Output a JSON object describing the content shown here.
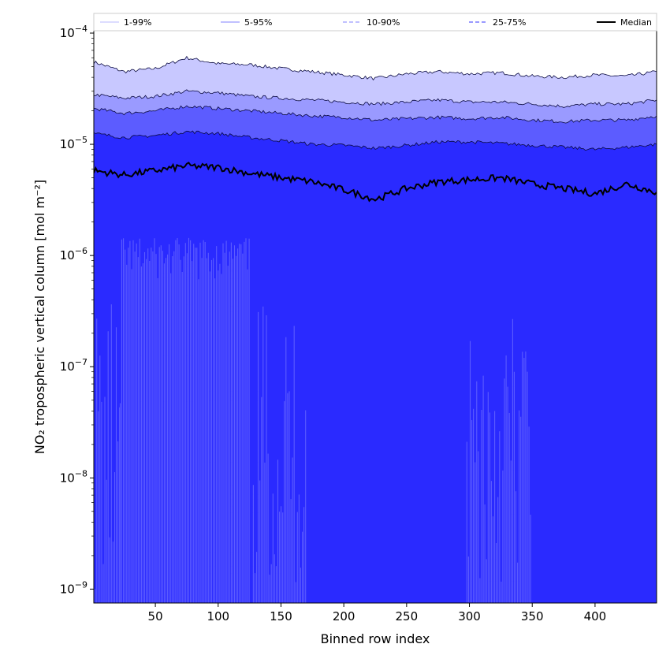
{
  "chart_data": {
    "type": "area",
    "xlabel": "Binned row index",
    "ylabel": "NO₂ tropospheric vertical column [mol m⁻²]",
    "x_range": [
      1,
      449
    ],
    "y_range": [
      7.5e-10,
      0.000105
    ],
    "y_scale": "log",
    "x_ticks": [
      50,
      100,
      150,
      200,
      250,
      300,
      350,
      400
    ],
    "x_tick_labels": [
      "50",
      "100",
      "150",
      "200",
      "250",
      "300",
      "350",
      "400"
    ],
    "y_ticks": [
      1e-09,
      1e-08,
      1e-07,
      1e-06,
      1e-05,
      0.0001
    ],
    "y_tick_labels": [
      {
        "base": "10",
        "exp": "−9"
      },
      {
        "base": "10",
        "exp": "−8"
      },
      {
        "base": "10",
        "exp": "−7"
      },
      {
        "base": "10",
        "exp": "−6"
      },
      {
        "base": "10",
        "exp": "−5"
      },
      {
        "base": "10",
        "exp": "−4"
      }
    ],
    "grid": false,
    "legend_position": "top",
    "x": [
      1,
      25,
      50,
      75,
      100,
      125,
      150,
      175,
      200,
      225,
      250,
      275,
      300,
      325,
      350,
      375,
      400,
      425,
      449
    ],
    "series": [
      {
        "name": "1-99%",
        "color": "#c8c8ff",
        "role": "band",
        "upper": [
          5.5e-05,
          4.5e-05,
          4.8e-05,
          6e-05,
          5.3e-05,
          5.2e-05,
          4.8e-05,
          4.5e-05,
          4.2e-05,
          3.9e-05,
          4.3e-05,
          4.5e-05,
          4.3e-05,
          4.4e-05,
          4.1e-05,
          4e-05,
          4.2e-05,
          4.1e-05,
          4.5e-05
        ]
      },
      {
        "name": "5-95%",
        "color": "#9a9aff",
        "role": "band",
        "upper": [
          2.8e-05,
          2.6e-05,
          2.7e-05,
          3e-05,
          2.9e-05,
          2.7e-05,
          2.6e-05,
          2.5e-05,
          2.4e-05,
          2.3e-05,
          2.4e-05,
          2.5e-05,
          2.4e-05,
          2.4e-05,
          2.3e-05,
          2.2e-05,
          2.3e-05,
          2.3e-05,
          2.5e-05
        ]
      },
      {
        "name": "10-90%",
        "color": "#5c5cff",
        "role": "band",
        "upper": [
          2.1e-05,
          1.9e-05,
          2e-05,
          2.2e-05,
          2.1e-05,
          2e-05,
          1.9e-05,
          1.8e-05,
          1.75e-05,
          1.65e-05,
          1.7e-05,
          1.75e-05,
          1.7e-05,
          1.75e-05,
          1.65e-05,
          1.6e-05,
          1.65e-05,
          1.65e-05,
          1.8e-05
        ]
      },
      {
        "name": "25-75%",
        "color": "#2a2aff",
        "role": "band",
        "upper": [
          1.25e-05,
          1.15e-05,
          1.2e-05,
          1.3e-05,
          1.25e-05,
          1.15e-05,
          1.08e-05,
          1e-05,
          9.8e-06,
          9.2e-06,
          9.8e-06,
          1.05e-05,
          1.05e-05,
          1.02e-05,
          9.8e-06,
          9.4e-06,
          9e-06,
          9.4e-06,
          1e-05
        ]
      },
      {
        "name": "Median",
        "color": "#000000",
        "role": "line",
        "values": [
          5.8e-06,
          5.3e-06,
          5.8e-06,
          6.4e-06,
          6.2e-06,
          5.5e-06,
          5e-06,
          4.6e-06,
          3.9e-06,
          3.2e-06,
          4e-06,
          4.6e-06,
          4.8e-06,
          5e-06,
          4.4e-06,
          4e-06,
          3.6e-06,
          4.4e-06,
          3.7e-06
        ]
      }
    ]
  }
}
